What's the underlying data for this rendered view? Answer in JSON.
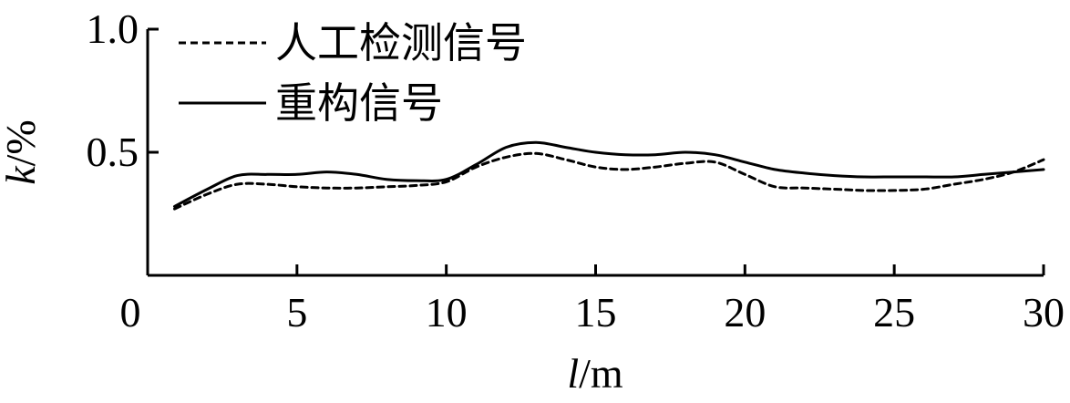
{
  "chart_data": {
    "type": "line",
    "title": "",
    "xlabel": {
      "var": "l",
      "unit": "/m"
    },
    "ylabel": {
      "var": "k",
      "unit": "/%"
    },
    "xlim": [
      0,
      30
    ],
    "ylim": [
      0,
      1.0
    ],
    "x_ticks": [
      0,
      5,
      10,
      15,
      20,
      25,
      30
    ],
    "x_tick_labels": [
      "0",
      "5",
      "10",
      "15",
      "20",
      "25",
      "30"
    ],
    "y_ticks": [
      0,
      0.5,
      1.0
    ],
    "y_tick_labels": [
      "0",
      "0.5",
      "1.0"
    ],
    "grid": false,
    "legend_position": "top-left",
    "series": [
      {
        "name": "人工检测信号",
        "style": "dashed",
        "color": "#000000",
        "x": [
          0.9,
          2,
          3,
          4,
          5,
          6,
          7,
          8,
          9,
          10,
          11,
          12,
          13,
          14,
          15,
          16,
          17,
          18,
          19,
          20,
          21,
          22,
          23,
          24,
          25,
          26,
          27,
          28,
          29,
          30
        ],
        "y": [
          0.27,
          0.33,
          0.37,
          0.37,
          0.36,
          0.355,
          0.355,
          0.36,
          0.365,
          0.38,
          0.44,
          0.48,
          0.495,
          0.47,
          0.44,
          0.43,
          0.44,
          0.455,
          0.46,
          0.41,
          0.36,
          0.355,
          0.35,
          0.345,
          0.345,
          0.35,
          0.37,
          0.39,
          0.42,
          0.47
        ]
      },
      {
        "name": "重构信号",
        "style": "solid",
        "color": "#000000",
        "x": [
          0.9,
          2,
          3,
          4,
          5,
          6,
          7,
          8,
          9,
          10,
          11,
          12,
          13,
          14,
          15,
          16,
          17,
          18,
          19,
          20,
          21,
          22,
          23,
          24,
          25,
          26,
          27,
          28,
          29,
          30
        ],
        "y": [
          0.28,
          0.35,
          0.405,
          0.41,
          0.41,
          0.42,
          0.41,
          0.39,
          0.385,
          0.39,
          0.45,
          0.52,
          0.54,
          0.52,
          0.5,
          0.49,
          0.49,
          0.5,
          0.49,
          0.46,
          0.43,
          0.415,
          0.405,
          0.4,
          0.4,
          0.4,
          0.4,
          0.41,
          0.42,
          0.43
        ]
      }
    ]
  }
}
